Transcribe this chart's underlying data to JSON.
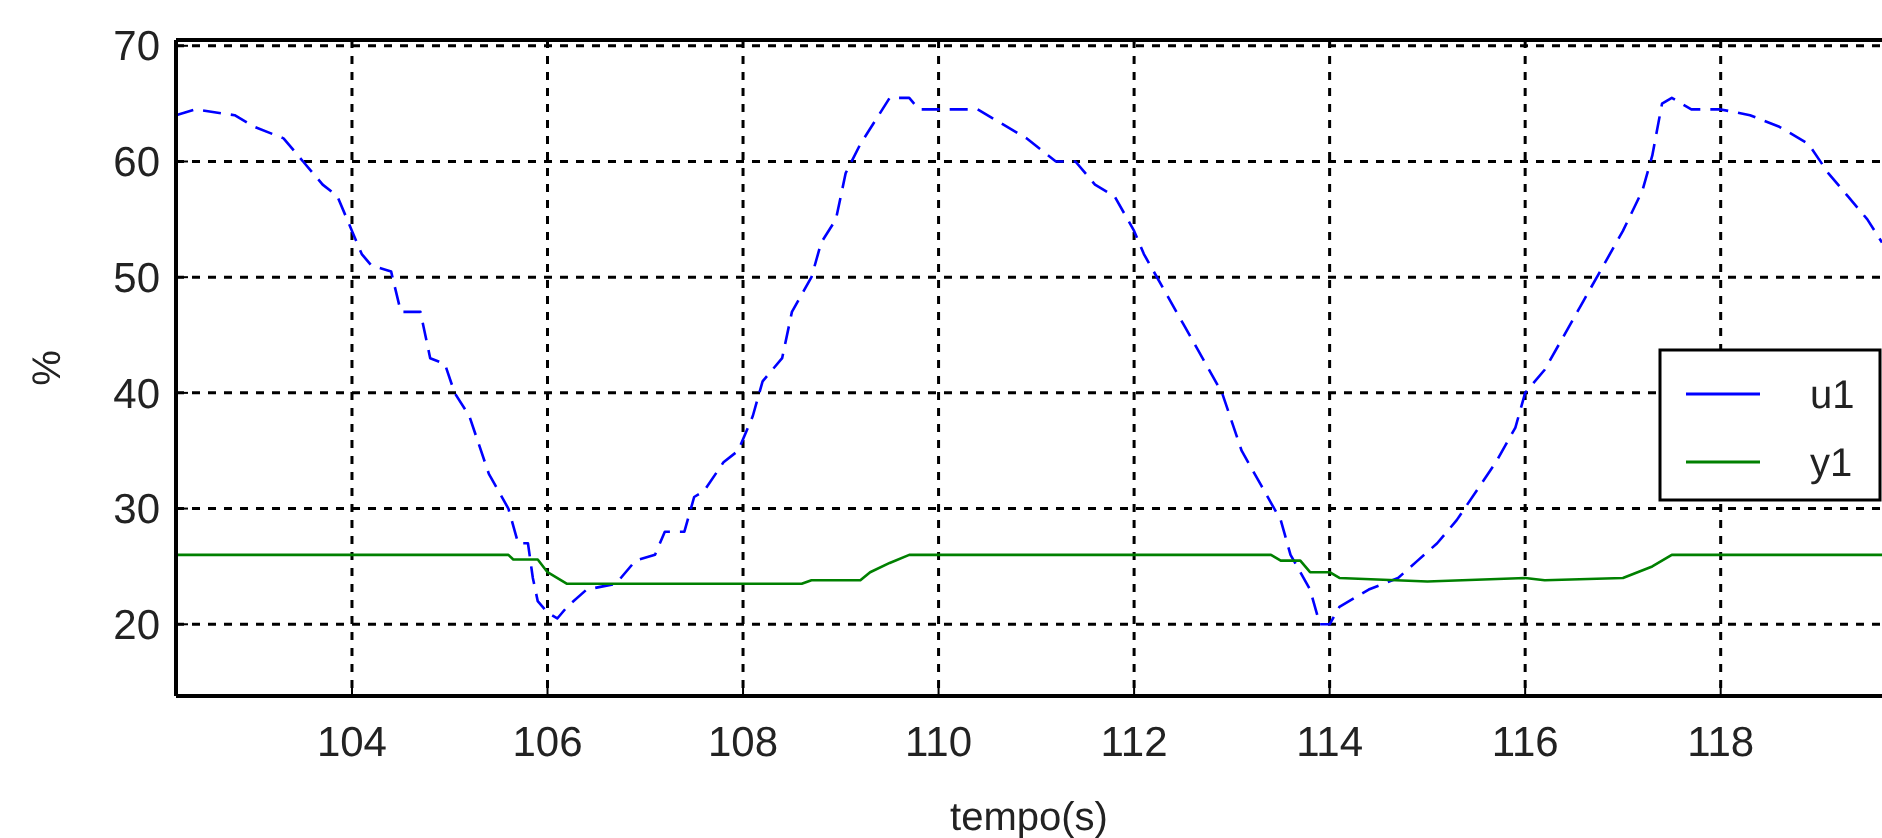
{
  "chart_data": {
    "type": "line",
    "xlabel": "tempo(s)",
    "ylabel": "%",
    "xlim": [
      102.2,
      119.65
    ],
    "ylim": [
      13.8,
      70.5
    ],
    "xticks": [
      104,
      106,
      108,
      110,
      112,
      114,
      116,
      118
    ],
    "yticks": [
      20,
      30,
      40,
      50,
      60,
      70
    ],
    "grid": true,
    "legend": "right",
    "series": [
      {
        "name": "u1",
        "color": "#0000ff",
        "line_style": "dashed",
        "x": [
          102.2,
          102.4,
          102.8,
          103.0,
          103.3,
          103.5,
          103.7,
          103.85,
          104.0,
          104.1,
          104.2,
          104.4,
          104.5,
          104.7,
          104.8,
          104.95,
          105.05,
          105.2,
          105.4,
          105.6,
          105.7,
          105.8,
          105.85,
          105.9,
          106.0,
          106.1,
          106.2,
          106.4,
          106.7,
          106.9,
          107.1,
          107.2,
          107.4,
          107.5,
          107.6,
          107.8,
          107.95,
          108.1,
          108.2,
          108.4,
          108.5,
          108.7,
          108.8,
          108.95,
          109.05,
          109.2,
          109.35,
          109.5,
          109.7,
          109.8,
          110.0,
          110.4,
          110.6,
          110.9,
          111.2,
          111.4,
          111.6,
          111.8,
          112.0,
          112.1,
          112.3,
          112.5,
          112.7,
          112.9,
          113.1,
          113.3,
          113.5,
          113.6,
          113.8,
          113.9,
          114.0,
          114.1,
          114.4,
          114.7,
          114.9,
          115.1,
          115.3,
          115.5,
          115.7,
          115.9,
          116.0,
          116.2,
          116.4,
          116.6,
          116.8,
          117.0,
          117.2,
          117.3,
          117.4,
          117.5,
          117.7,
          118.0,
          118.3,
          118.6,
          118.9,
          119.1,
          119.3,
          119.5,
          119.65
        ],
        "values": [
          64,
          64.5,
          64,
          63,
          62,
          60,
          58,
          57,
          54,
          52,
          51,
          50.5,
          47,
          47,
          43,
          42.5,
          40,
          38,
          33,
          30,
          27,
          27,
          24,
          22,
          21,
          20.5,
          21.5,
          23,
          23.5,
          25.5,
          26,
          28,
          28,
          31,
          31.5,
          34,
          35,
          38,
          41,
          43,
          47,
          50,
          53,
          55,
          59,
          61.5,
          63.5,
          65.5,
          65.5,
          64.5,
          64.5,
          64.5,
          63.5,
          62,
          60,
          60,
          58,
          57,
          54,
          52,
          49,
          46,
          43,
          40,
          35,
          32,
          29,
          26,
          23,
          20,
          20,
          21.5,
          23,
          24,
          25.5,
          27,
          29,
          31.5,
          34,
          37,
          40,
          42,
          45,
          48,
          51,
          54,
          57.5,
          60.5,
          65,
          65.5,
          64.5,
          64.5,
          64,
          63,
          61.5,
          59,
          57,
          55,
          53
        ]
      },
      {
        "name": "y1",
        "color": "#008000",
        "line_style": "solid",
        "x": [
          102.2,
          105.6,
          105.65,
          105.9,
          106.0,
          106.2,
          108.6,
          108.7,
          109.2,
          109.3,
          109.5,
          109.7,
          113.4,
          113.5,
          113.7,
          113.8,
          114.0,
          114.1,
          115.0,
          116.0,
          116.2,
          117.0,
          117.3,
          117.5,
          119.65
        ],
        "values": [
          26,
          26,
          25.6,
          25.6,
          24.5,
          23.5,
          23.5,
          23.8,
          23.8,
          24.5,
          25.3,
          26,
          26,
          25.5,
          25.5,
          24.5,
          24.5,
          24,
          23.7,
          24,
          23.8,
          24,
          25,
          26,
          26
        ]
      }
    ]
  }
}
